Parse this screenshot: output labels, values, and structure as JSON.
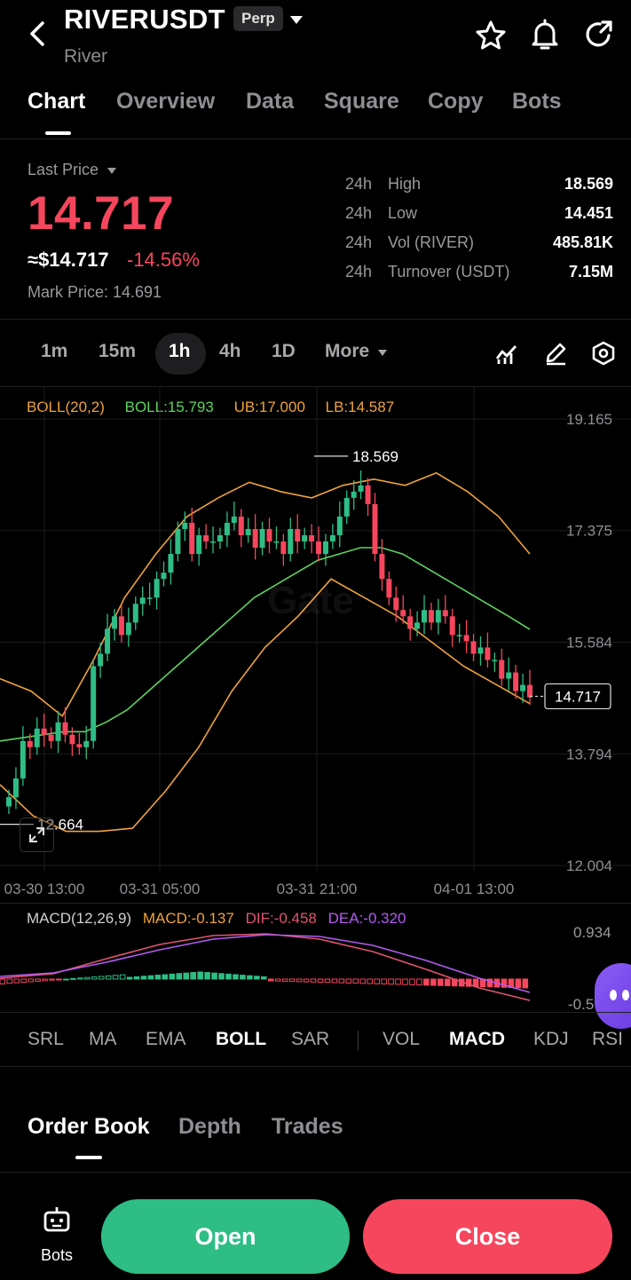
{
  "header": {
    "symbol": "RIVERUSDT",
    "contract_badge": "Perp",
    "name": "River"
  },
  "tabs": [
    "Chart",
    "Overview",
    "Data",
    "Square",
    "Copy",
    "Bots"
  ],
  "price": {
    "last_price_label": "Last Price",
    "last_price": "14.717",
    "usd_price": "≈$14.717",
    "change": "-14.56%",
    "mark_price": "Mark Price: 14.691"
  },
  "stats": [
    {
      "p": "24h",
      "k": "High",
      "v": "18.569"
    },
    {
      "p": "24h",
      "k": "Low",
      "v": "14.451"
    },
    {
      "p": "24h",
      "k": "Vol (RIVER)",
      "v": "485.81K"
    },
    {
      "p": "24h",
      "k": "Turnover (USDT)",
      "v": "7.15M"
    }
  ],
  "timeframes": [
    "1m",
    "15m",
    "1h",
    "4h",
    "1D",
    "More"
  ],
  "active_timeframe": "1h",
  "boll": {
    "label": "BOLL(20,2)",
    "mid": "BOLL:15.793",
    "ub": "UB:17.000",
    "lb": "LB:14.587"
  },
  "macd": {
    "label": "MACD(12,26,9)",
    "macd": "MACD:-0.137",
    "dif": "DIF:-0.458",
    "dea": "DEA:-0.320",
    "axis_top": "0.934",
    "axis_bottom": "-0.5"
  },
  "indicators": [
    "SRL",
    "MA",
    "EMA",
    "BOLL",
    "SAR",
    "VOL",
    "MACD",
    "KDJ",
    "RSI"
  ],
  "orderbook_tabs": [
    "Order Book",
    "Depth",
    "Trades"
  ],
  "footer": {
    "bots_label": "Bots",
    "open_label": "Open",
    "close_label": "Close"
  },
  "colors": {
    "up": "#2ebd85",
    "down": "#f6465d",
    "boll_mid": "#5ed35e",
    "boll_band": "#f0a23c",
    "dif": "#e05570",
    "dea": "#b25cf0",
    "accent": "#2ebd85"
  },
  "chart_data": {
    "type": "candlestick",
    "y_ticks": [
      "19.165",
      "17.375",
      "15.584",
      "13.794",
      "12.004"
    ],
    "ylim": [
      12.004,
      19.165
    ],
    "x_ticks": [
      "03-30 13:00",
      "03-31 05:00",
      "03-31 21:00",
      "04-01 13:00"
    ],
    "high_marker": "18.569",
    "low_marker": "12.664",
    "current_price_tag": "14.717",
    "close_series": [
      13.1,
      13.4,
      14.0,
      13.9,
      14.2,
      14.1,
      14.0,
      14.3,
      14.1,
      13.95,
      13.9,
      14.0,
      15.2,
      15.4,
      15.8,
      16.0,
      15.7,
      15.9,
      16.2,
      16.3,
      16.3,
      16.6,
      16.7,
      17.0,
      17.4,
      17.5,
      17.0,
      17.3,
      17.2,
      17.2,
      17.3,
      17.5,
      17.6,
      17.3,
      17.4,
      17.1,
      17.4,
      17.2,
      17.2,
      17.0,
      17.4,
      17.2,
      17.3,
      17.2,
      17.0,
      17.2,
      17.3,
      17.6,
      17.9,
      18.0,
      18.1,
      17.8,
      17.0,
      16.6,
      16.3,
      16.1,
      16.0,
      15.8,
      15.9,
      16.1,
      15.9,
      16.1,
      16.0,
      15.7,
      15.7,
      15.6,
      15.4,
      15.5,
      15.3,
      15.3,
      15.0,
      15.1,
      14.8,
      14.9,
      14.7
    ],
    "boll_mid_series": [
      14.0,
      14.05,
      14.1,
      14.15,
      14.15,
      14.3,
      14.5,
      14.8,
      15.1,
      15.4,
      15.7,
      16.0,
      16.3,
      16.5,
      16.7,
      16.9,
      17.0,
      17.1,
      17.1,
      17.0,
      16.8,
      16.6,
      16.4,
      16.2,
      16.0,
      15.79
    ],
    "boll_upper_series": [
      15.0,
      14.8,
      14.4,
      15.3,
      16.3,
      17.0,
      17.6,
      17.9,
      18.15,
      18.0,
      17.9,
      18.1,
      18.2,
      18.1,
      18.3,
      18.0,
      17.6,
      17.0
    ],
    "boll_lower_series": [
      13.3,
      12.8,
      12.55,
      12.55,
      12.6,
      13.2,
      13.9,
      14.8,
      15.5,
      16.0,
      16.6,
      16.3,
      16.0,
      15.6,
      15.2,
      14.9,
      14.6
    ]
  }
}
